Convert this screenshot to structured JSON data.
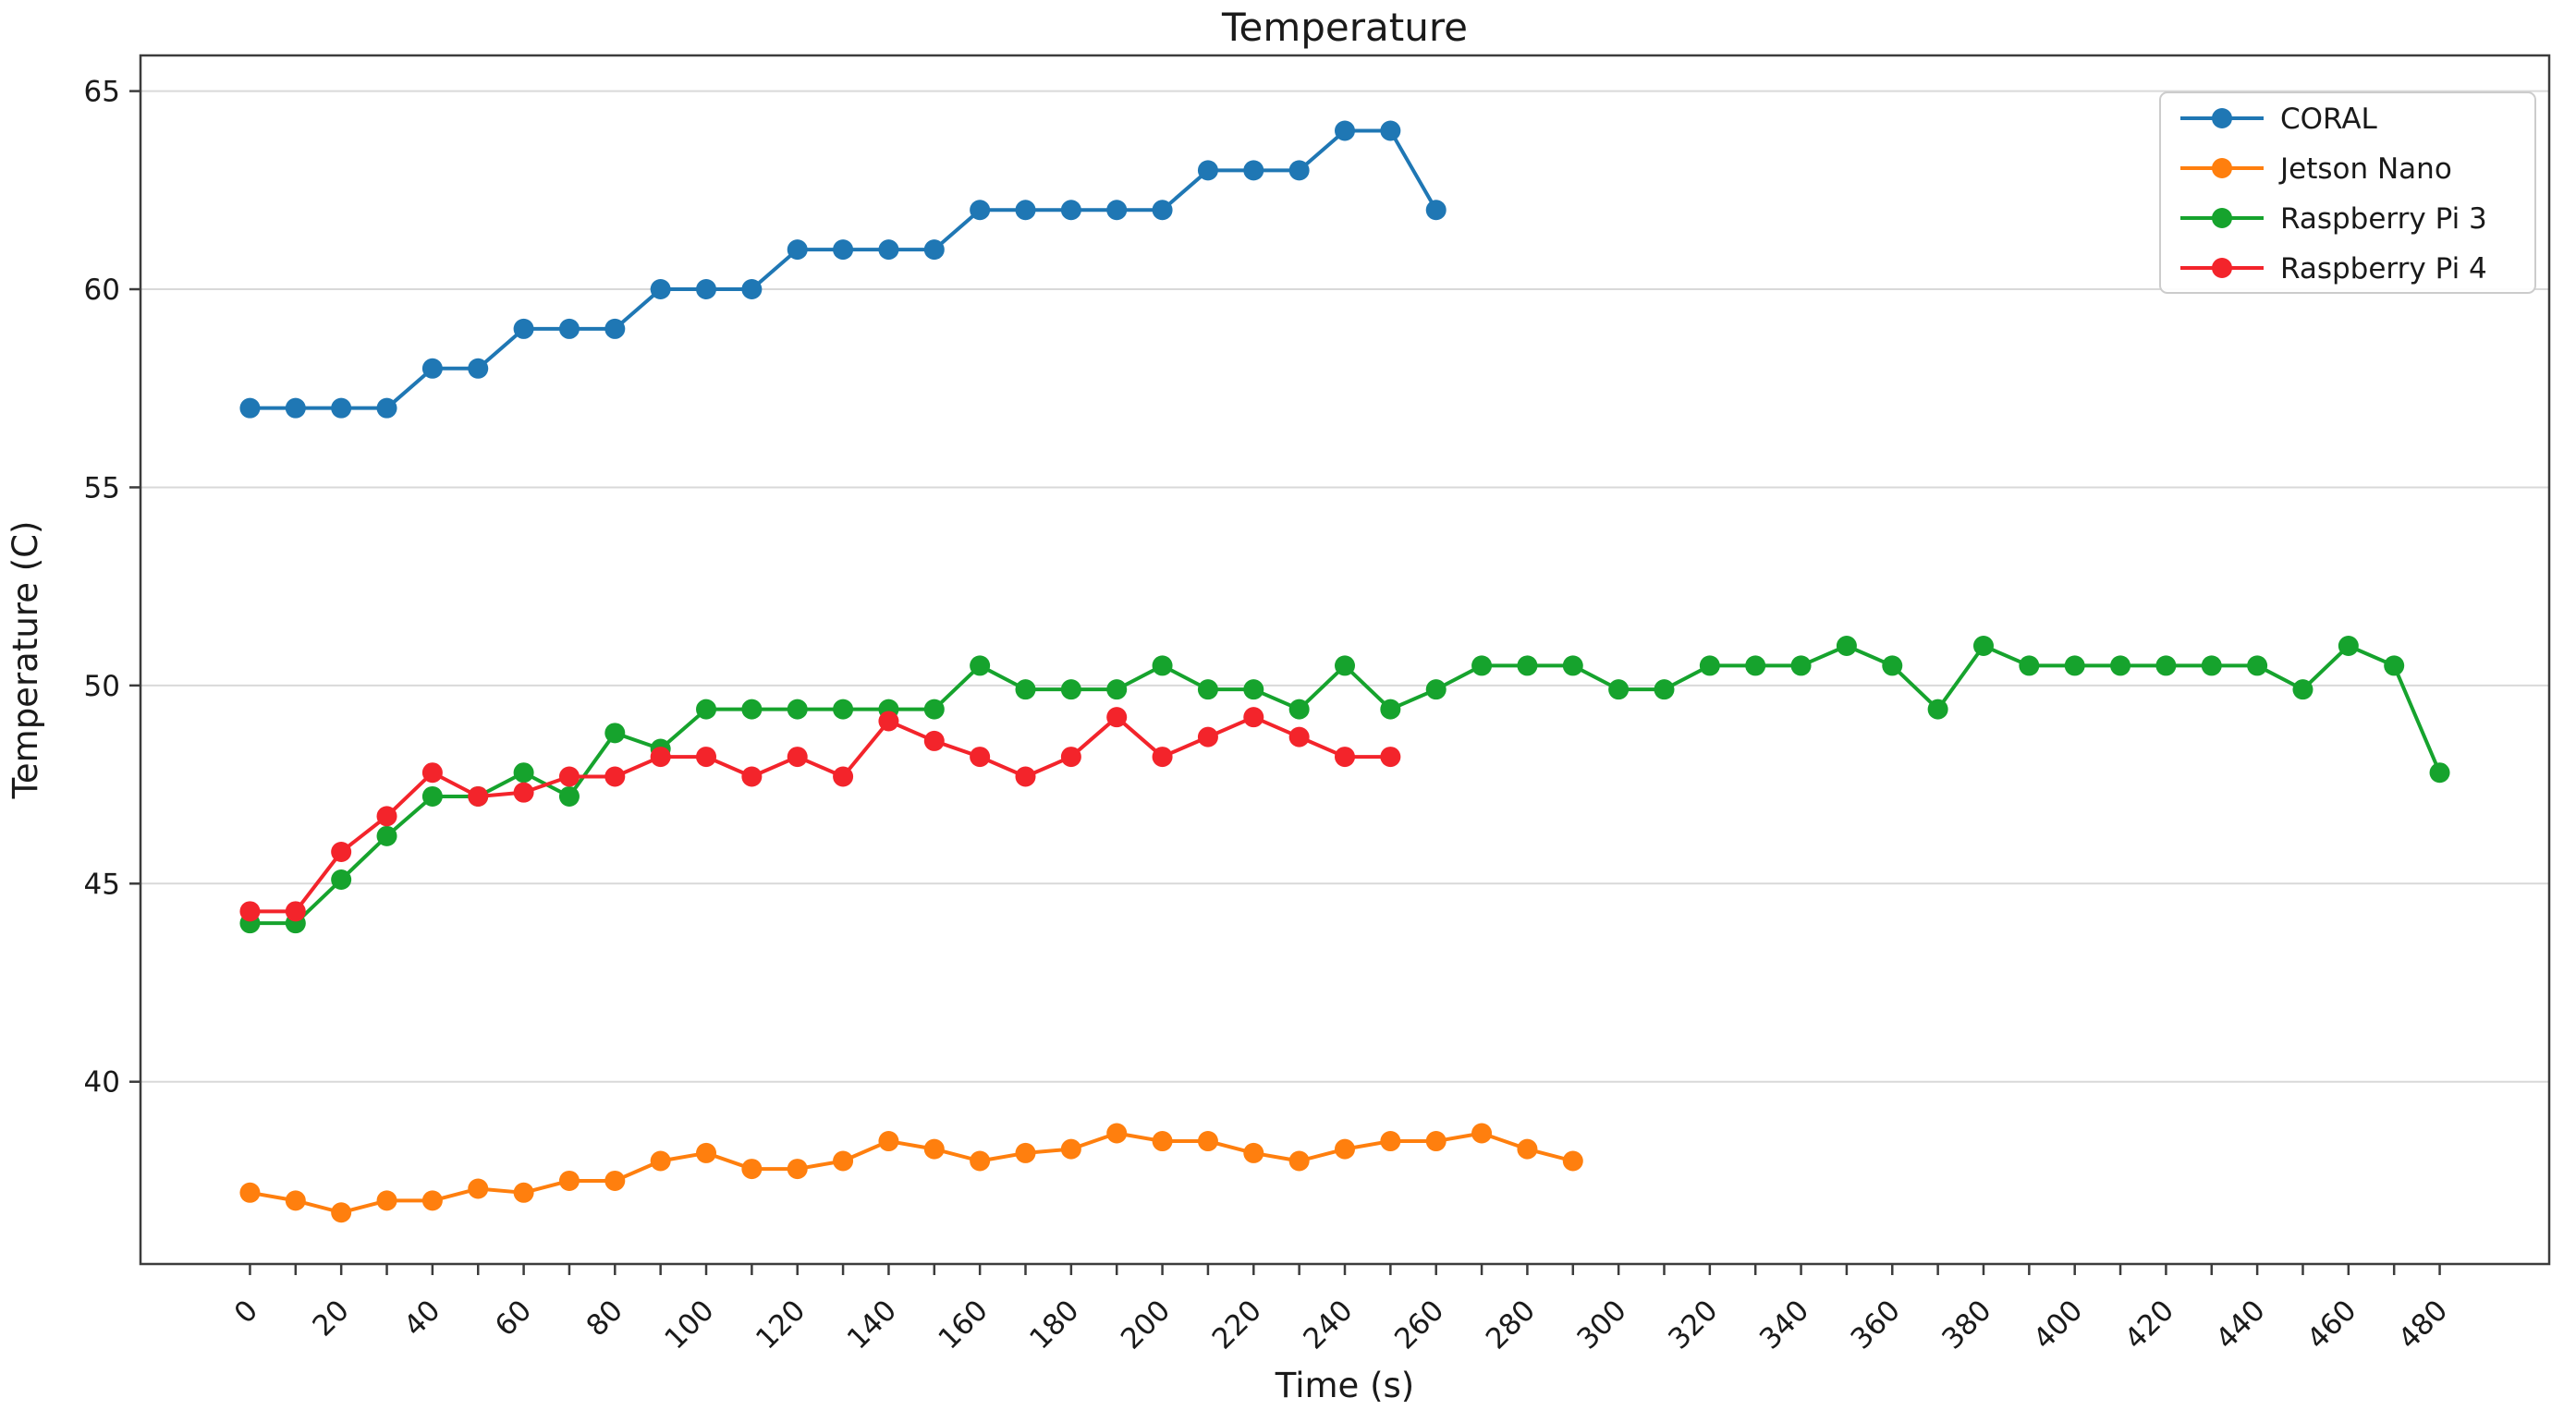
{
  "chart_data": {
    "type": "line",
    "title": "Temperature",
    "xlabel": "Time (s)",
    "ylabel": "Temperature (C)",
    "grid": "horizontal",
    "grid_color": "#d9d9d9",
    "spine_color": "#3c3c3c",
    "text_color": "#1a1a1a",
    "legend_position": "upper right",
    "marker": "circle",
    "xlim": [
      -24,
      504
    ],
    "ylim": [
      35.4,
      65.9
    ],
    "y_ticks": [
      40,
      45,
      50,
      55,
      60,
      65
    ],
    "x_tick_minor_step": 10,
    "x_tick_label_step": 20,
    "x_tick_min": 0,
    "x_tick_max": 480,
    "x_tick_label_rotation": 45,
    "series": [
      {
        "name": "CORAL",
        "color": "#1f77b4",
        "x": [
          0,
          10,
          20,
          30,
          40,
          50,
          60,
          70,
          80,
          90,
          100,
          110,
          120,
          130,
          140,
          150,
          160,
          170,
          180,
          190,
          200,
          210,
          220,
          230,
          240,
          250,
          260
        ],
        "values": [
          57,
          57,
          57,
          57,
          58,
          58,
          59,
          59,
          59,
          60,
          60,
          60,
          61,
          61,
          61,
          61,
          62,
          62,
          62,
          62,
          62,
          63,
          63,
          63,
          64,
          64,
          62
        ]
      },
      {
        "name": "Jetson Nano",
        "color": "#ff7f0e",
        "x": [
          0,
          10,
          20,
          30,
          40,
          50,
          60,
          70,
          80,
          90,
          100,
          110,
          120,
          130,
          140,
          150,
          160,
          170,
          180,
          190,
          200,
          210,
          220,
          230,
          240,
          250,
          260,
          270,
          280,
          290
        ],
        "values": [
          37.2,
          37.0,
          36.7,
          37.0,
          37.0,
          37.3,
          37.2,
          37.5,
          37.5,
          38.0,
          38.2,
          37.8,
          37.8,
          38.0,
          38.5,
          38.3,
          38.0,
          38.2,
          38.3,
          38.7,
          38.5,
          38.5,
          38.2,
          38.0,
          38.3,
          38.5,
          38.5,
          38.7,
          38.3,
          38.0
        ]
      },
      {
        "name": "Raspberry Pi 3",
        "color": "#16a32d",
        "x": [
          0,
          10,
          20,
          30,
          40,
          50,
          60,
          70,
          80,
          90,
          100,
          110,
          120,
          130,
          140,
          150,
          160,
          170,
          180,
          190,
          200,
          210,
          220,
          230,
          240,
          250,
          260,
          270,
          280,
          290,
          300,
          310,
          320,
          330,
          340,
          350,
          360,
          370,
          380,
          390,
          400,
          410,
          420,
          430,
          440,
          450,
          460,
          470,
          480
        ],
        "values": [
          44.0,
          44.0,
          45.1,
          46.2,
          47.2,
          47.2,
          47.8,
          47.2,
          48.8,
          48.4,
          49.4,
          49.4,
          49.4,
          49.4,
          49.4,
          49.4,
          50.5,
          49.9,
          49.9,
          49.9,
          50.5,
          49.9,
          49.9,
          49.4,
          50.5,
          49.4,
          49.9,
          50.5,
          50.5,
          50.5,
          49.9,
          49.9,
          50.5,
          50.5,
          50.5,
          51.0,
          50.5,
          49.4,
          51.0,
          50.5,
          50.5,
          50.5,
          50.5,
          50.5,
          50.5,
          49.9,
          51.0,
          50.5,
          47.8
        ]
      },
      {
        "name": "Raspberry Pi 4",
        "color": "#f3242b",
        "x": [
          0,
          10,
          20,
          30,
          40,
          50,
          60,
          70,
          80,
          90,
          100,
          110,
          120,
          130,
          140,
          150,
          160,
          170,
          180,
          190,
          200,
          210,
          220,
          230,
          240,
          250
        ],
        "values": [
          44.3,
          44.3,
          45.8,
          46.7,
          47.8,
          47.2,
          47.3,
          47.7,
          47.7,
          48.2,
          48.2,
          47.7,
          48.2,
          47.7,
          49.1,
          48.6,
          48.2,
          47.7,
          48.2,
          49.2,
          48.2,
          48.7,
          49.2,
          48.7,
          48.2,
          48.2
        ]
      }
    ]
  }
}
